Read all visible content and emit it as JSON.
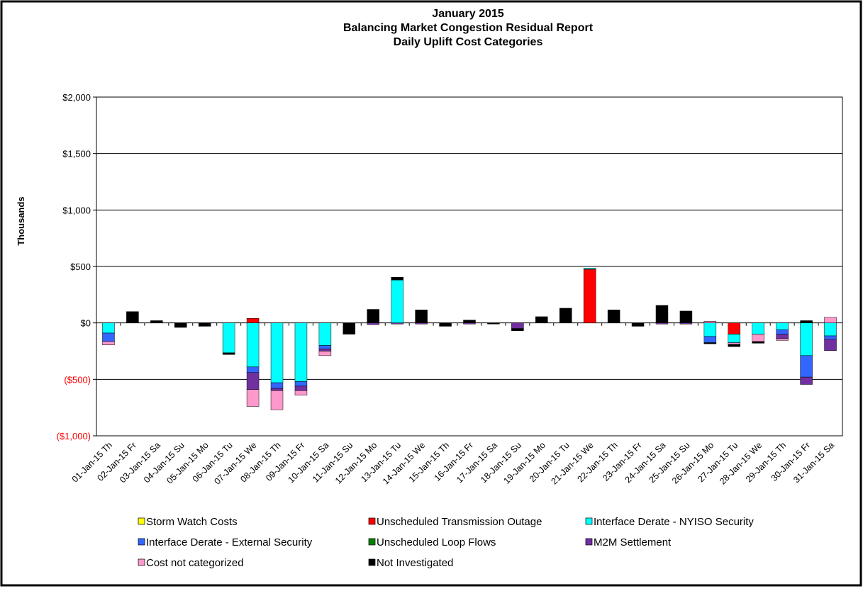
{
  "chart_data": {
    "type": "bar",
    "title": [
      "January 2015",
      "Balancing Market Congestion Residual Report",
      "Daily Uplift Cost Categories"
    ],
    "y_label": "Thousands",
    "stacked": true,
    "grid": true,
    "negative_tick_color": "#ff0000",
    "ylim": [
      -1000,
      2000
    ],
    "yticks": [
      {
        "value": -1000,
        "label": "($1,000)"
      },
      {
        "value": -500,
        "label": "($500)"
      },
      {
        "value": 0,
        "label": "$0"
      },
      {
        "value": 500,
        "label": "$500"
      },
      {
        "value": 1000,
        "label": "$1,000"
      },
      {
        "value": 1500,
        "label": "$1,500"
      },
      {
        "value": 2000,
        "label": "$2,000"
      }
    ],
    "categories": [
      "01-Jan-15 Th",
      "02-Jan-15 Fr",
      "03-Jan-15 Sa",
      "04-Jan-15 Su",
      "05-Jan-15 Mo",
      "06-Jan-15 Tu",
      "07-Jan-15 We",
      "08-Jan-15 Th",
      "09-Jan-15 Fr",
      "10-Jan-15 Sa",
      "11-Jan-15 Su",
      "12-Jan-15 Mo",
      "13-Jan-15 Tu",
      "14-Jan-15 We",
      "15-Jan-15 Th",
      "16-Jan-15 Fr",
      "17-Jan-15 Sa",
      "18-Jan-15 Su",
      "19-Jan-15 Mo",
      "20-Jan-15 Tu",
      "21-Jan-15 We",
      "22-Jan-15 Th",
      "23-Jan-15 Fr",
      "24-Jan-15 Sa",
      "25-Jan-15 Su",
      "26-Jan-15 Mo",
      "27-Jan-15 Tu",
      "28-Jan-15 We",
      "29-Jan-15 Th",
      "30-Jan-15 Fr",
      "31-Jan-15 Sa"
    ],
    "series": [
      {
        "name": "Storm Watch Costs",
        "color": "#ffff00",
        "values": [
          0,
          0,
          0,
          0,
          0,
          0,
          0,
          0,
          0,
          0,
          0,
          0,
          0,
          0,
          0,
          0,
          0,
          0,
          0,
          0,
          0,
          0,
          0,
          0,
          0,
          0,
          0,
          0,
          0,
          0,
          0
        ]
      },
      {
        "name": "Unscheduled Transmission Outage",
        "color": "#ff0000",
        "values": [
          0,
          0,
          0,
          0,
          0,
          0,
          40,
          0,
          0,
          0,
          0,
          0,
          0,
          0,
          0,
          0,
          0,
          0,
          0,
          0,
          475,
          0,
          0,
          0,
          0,
          0,
          -100,
          0,
          0,
          0,
          0
        ]
      },
      {
        "name": "Interface Derate - NYISO Security",
        "color": "#00ffff",
        "values": [
          -90,
          0,
          0,
          0,
          0,
          -265,
          -390,
          -530,
          -520,
          -200,
          0,
          0,
          380,
          0,
          0,
          0,
          0,
          0,
          0,
          0,
          10,
          0,
          0,
          0,
          0,
          -120,
          -75,
          -100,
          -60,
          -290,
          -115
        ]
      },
      {
        "name": "Interface Derate - External Security",
        "color": "#3366ff",
        "values": [
          -75,
          0,
          0,
          0,
          0,
          0,
          -50,
          -50,
          -40,
          -30,
          0,
          0,
          0,
          0,
          0,
          0,
          0,
          0,
          0,
          0,
          0,
          0,
          0,
          0,
          0,
          -55,
          0,
          0,
          -40,
          -190,
          -30
        ]
      },
      {
        "name": "Unscheduled Loop Flows",
        "color": "#008000",
        "values": [
          0,
          0,
          0,
          0,
          0,
          0,
          0,
          0,
          0,
          0,
          0,
          0,
          0,
          0,
          0,
          0,
          0,
          0,
          0,
          0,
          0,
          0,
          0,
          0,
          0,
          0,
          0,
          0,
          0,
          0,
          0
        ]
      },
      {
        "name": "M2M Settlement",
        "color": "#7030a0",
        "values": [
          0,
          0,
          0,
          0,
          0,
          0,
          -150,
          -20,
          -40,
          -20,
          0,
          -15,
          -10,
          -10,
          0,
          -10,
          0,
          -50,
          0,
          0,
          0,
          0,
          0,
          -10,
          -10,
          0,
          0,
          0,
          -40,
          -65,
          -100
        ]
      },
      {
        "name": "Cost not categorized",
        "color": "#ff99cc",
        "values": [
          -30,
          0,
          0,
          0,
          0,
          0,
          -150,
          -170,
          -40,
          -40,
          0,
          0,
          0,
          0,
          0,
          0,
          0,
          0,
          0,
          0,
          0,
          0,
          0,
          0,
          0,
          15,
          -15,
          -65,
          -15,
          0,
          50
        ]
      },
      {
        "name": "Not Investigated",
        "color": "#000000",
        "values": [
          0,
          100,
          20,
          -40,
          -30,
          -15,
          0,
          0,
          0,
          0,
          -100,
          120,
          25,
          115,
          -30,
          25,
          -10,
          -20,
          55,
          130,
          0,
          115,
          -30,
          155,
          105,
          -10,
          -20,
          -15,
          0,
          20,
          0
        ]
      }
    ]
  }
}
